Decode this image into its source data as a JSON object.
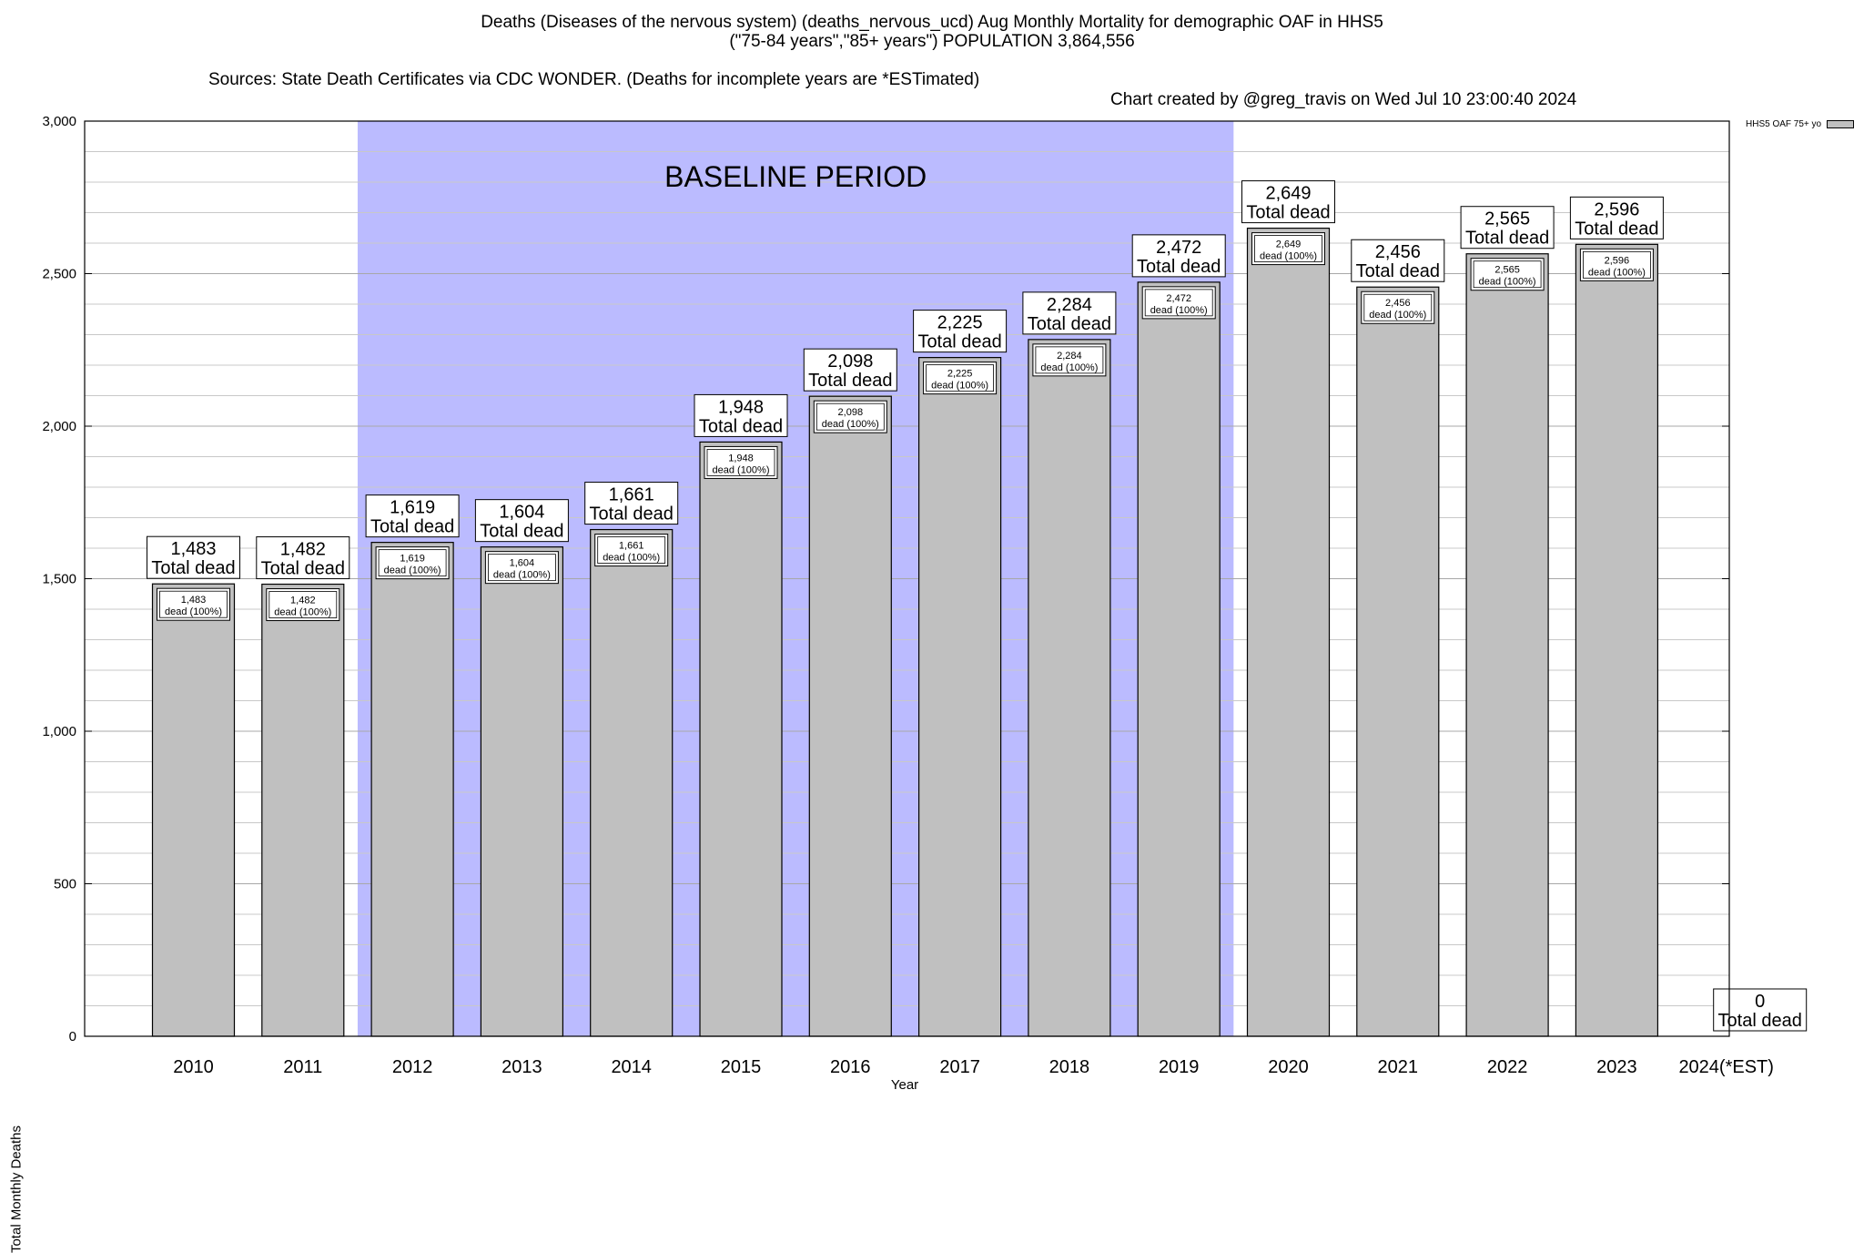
{
  "title": {
    "line1": "Deaths (Diseases of the nervous system) (deaths_nervous_ucd) Aug Monthly Mortality for demographic OAF in HHS5",
    "line2": "(\"75-84 years\",\"85+ years\") POPULATION 3,864,556",
    "sources": "Sources: State Death Certificates via CDC WONDER. (Deaths for incomplete years are *ESTimated)",
    "credit": "Chart created by @greg_travis on Wed Jul 10 23:00:40 2024"
  },
  "chart_data": {
    "type": "bar",
    "xlabel": "Year",
    "ylabel": "Total Monthly Deaths",
    "ylim": [
      0,
      3000
    ],
    "yticks": [
      0,
      500,
      1000,
      1500,
      2000,
      2500,
      3000
    ],
    "ytick_labels": [
      "0",
      "500",
      "1,000",
      "1,500",
      "2,000",
      "2,500",
      "3,000"
    ],
    "grid": "horizontal",
    "categories": [
      "2010",
      "2011",
      "2012",
      "2013",
      "2014",
      "2015",
      "2016",
      "2017",
      "2018",
      "2019",
      "2020",
      "2021",
      "2022",
      "2023",
      "2024(*EST)"
    ],
    "series": [
      {
        "name": "HHS5 OAF 75+ yo",
        "values": [
          1483,
          1482,
          1619,
          1604,
          1661,
          1948,
          2098,
          2225,
          2284,
          2472,
          2649,
          2456,
          2565,
          2596,
          0
        ],
        "value_labels": [
          "1,483",
          "1,482",
          "1,619",
          "1,604",
          "1,661",
          "1,948",
          "2,098",
          "2,225",
          "2,284",
          "2,472",
          "2,649",
          "2,456",
          "2,565",
          "2,596",
          "0"
        ]
      }
    ],
    "total_label": "Total dead",
    "inner_label": "dead (100%)",
    "baseline": {
      "label": "BASELINE PERIOD",
      "start": "2012",
      "end": "2019",
      "color": "#bbbbff"
    },
    "bar_color": "#c0c0c0",
    "legend": {
      "position": "top-right"
    }
  }
}
